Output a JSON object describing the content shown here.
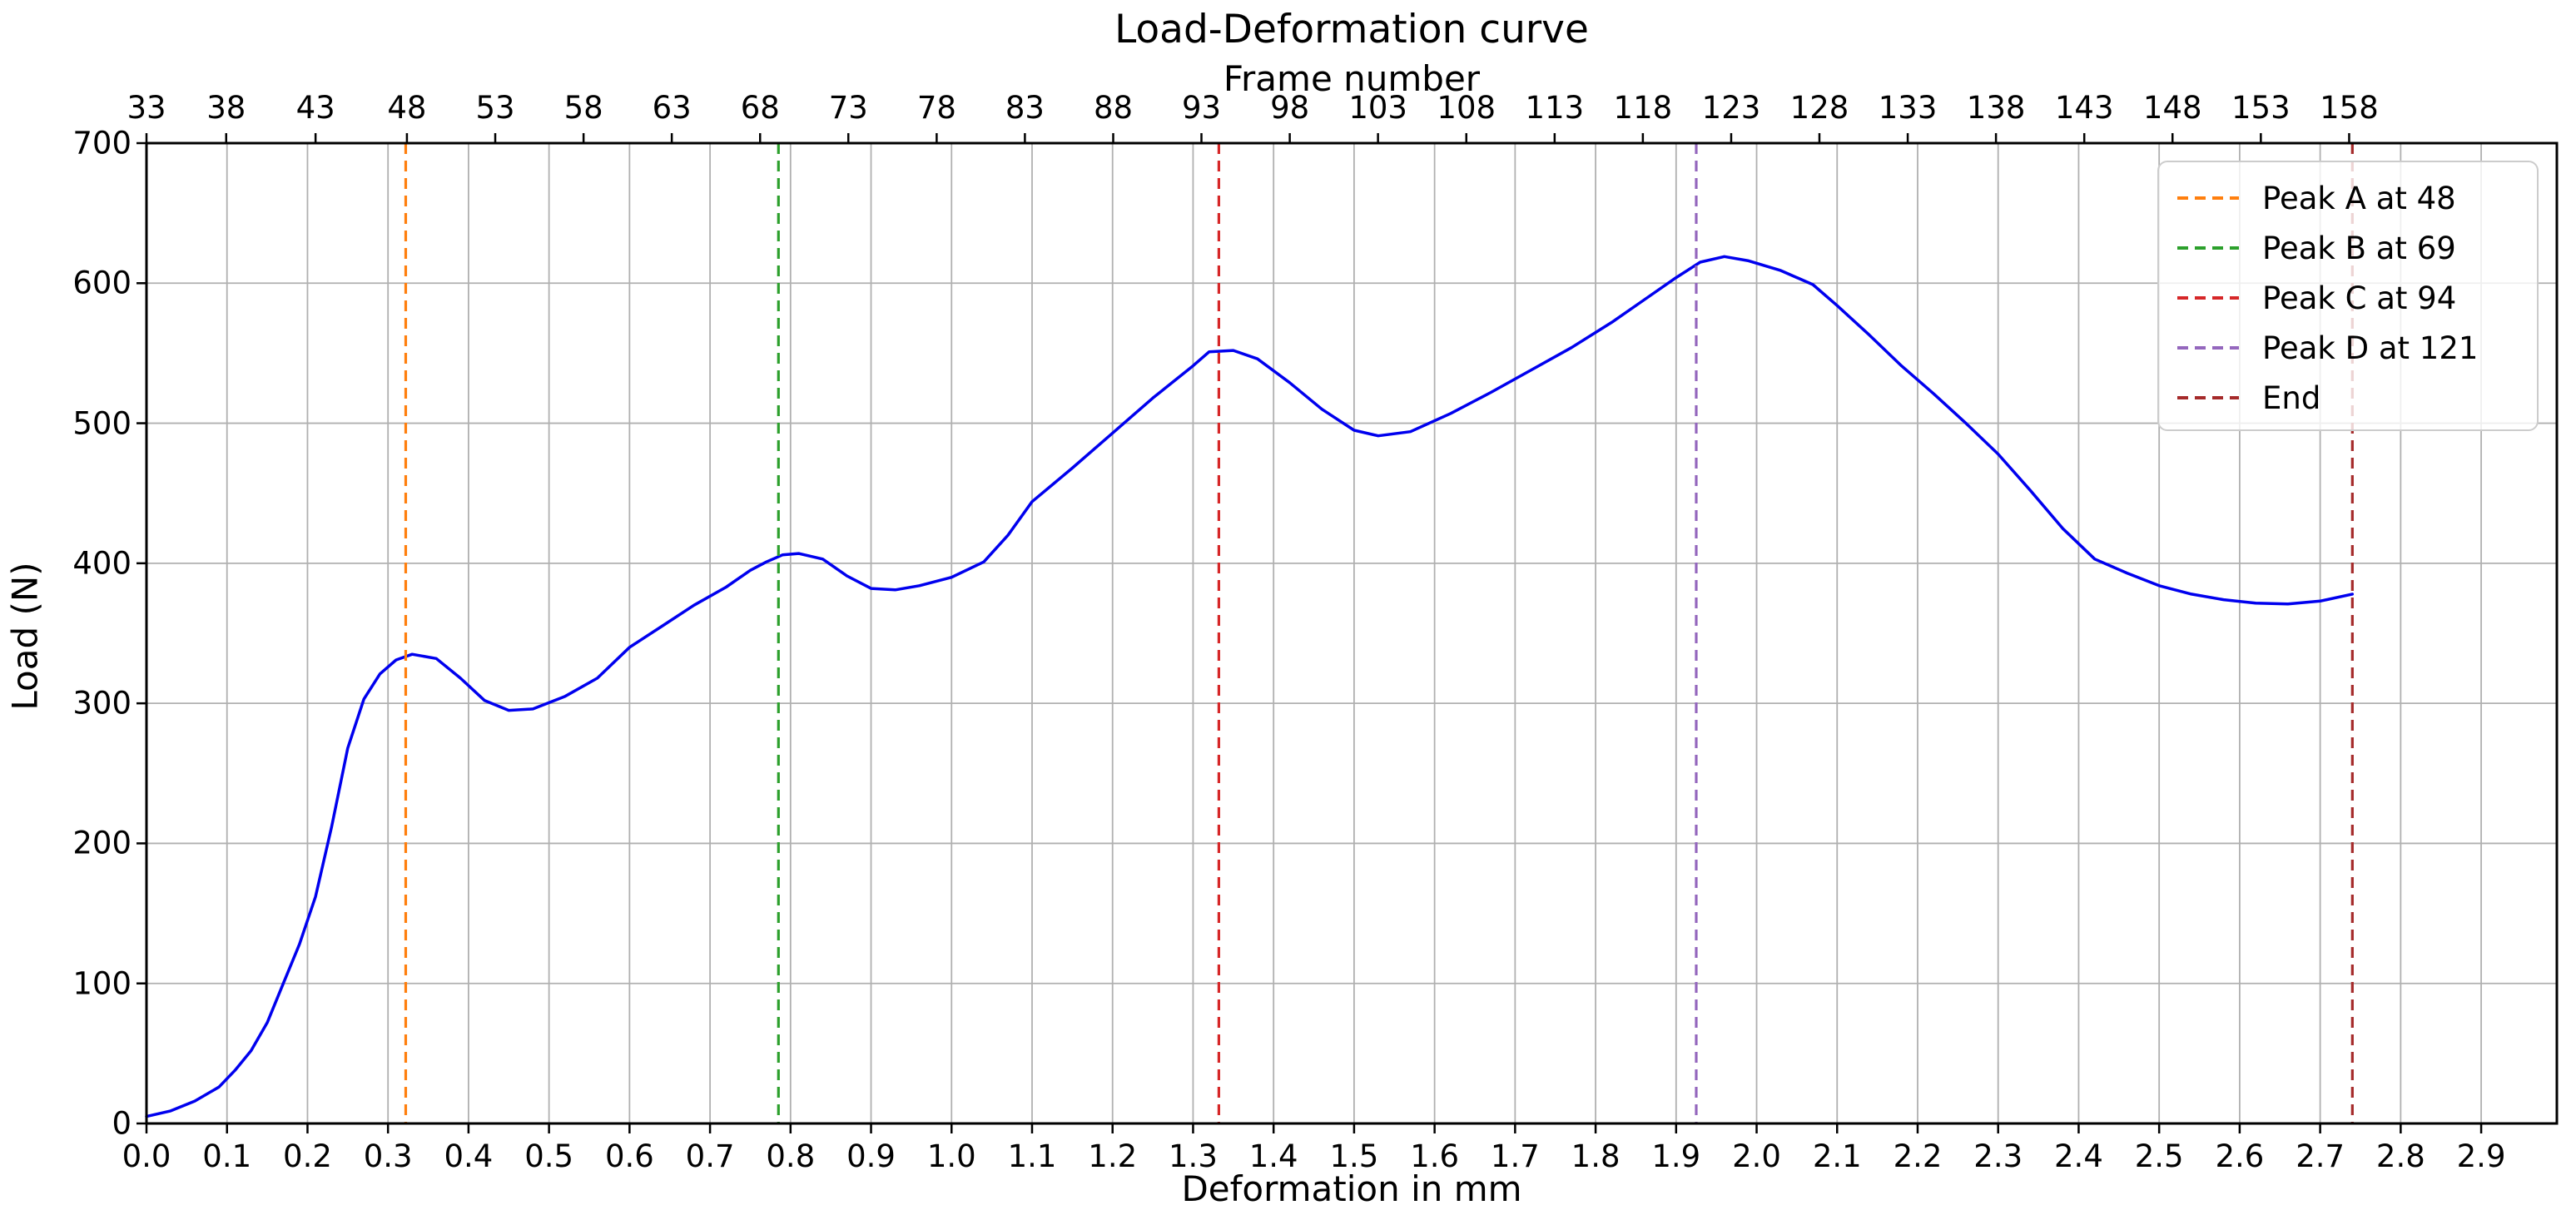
{
  "figure_title": "Load-Deformation curve",
  "chart_data": {
    "type": "line",
    "title": "Load-Deformation curve",
    "xlabel": "Deformation in mm",
    "ylabel": "Load (N)",
    "secondary_xlabel": "Frame number",
    "xlim": [
      0,
      2.994
    ],
    "ylim": [
      0,
      700
    ],
    "grid": true,
    "x_ticks": [
      "0.0",
      "0.1",
      "0.2",
      "0.3",
      "0.4",
      "0.5",
      "0.6",
      "0.7",
      "0.8",
      "0.9",
      "1.0",
      "1.1",
      "1.2",
      "1.3",
      "1.4",
      "1.5",
      "1.6",
      "1.7",
      "1.8",
      "1.9",
      "2.0",
      "2.1",
      "2.2",
      "2.3",
      "2.4",
      "2.5",
      "2.6",
      "2.7",
      "2.8",
      "2.9"
    ],
    "x_tick_values": [
      0.0,
      0.1,
      0.2,
      0.3,
      0.4,
      0.5,
      0.6,
      0.7,
      0.8,
      0.9,
      1.0,
      1.1,
      1.2,
      1.3,
      1.4,
      1.5,
      1.6,
      1.7,
      1.8,
      1.9,
      2.0,
      2.1,
      2.2,
      2.3,
      2.4,
      2.5,
      2.6,
      2.7,
      2.8,
      2.9
    ],
    "y_ticks": [
      0,
      100,
      200,
      300,
      400,
      500,
      600,
      700
    ],
    "frame_axis_ticks": [
      {
        "label": "33",
        "x": 0.0
      },
      {
        "label": "38",
        "x": 0.099
      },
      {
        "label": "43",
        "x": 0.21
      },
      {
        "label": "48",
        "x": 0.3235
      },
      {
        "label": "53",
        "x": 0.4332
      },
      {
        "label": "58",
        "x": 0.5429
      },
      {
        "label": "63",
        "x": 0.6525
      },
      {
        "label": "68",
        "x": 0.7622
      },
      {
        "label": "73",
        "x": 0.8718
      },
      {
        "label": "78",
        "x": 0.9815
      },
      {
        "label": "83",
        "x": 1.0911
      },
      {
        "label": "88",
        "x": 1.2008
      },
      {
        "label": "93",
        "x": 1.3104
      },
      {
        "label": "98",
        "x": 1.4201
      },
      {
        "label": "103",
        "x": 1.5297
      },
      {
        "label": "108",
        "x": 1.6394
      },
      {
        "label": "113",
        "x": 1.7491
      },
      {
        "label": "118",
        "x": 1.8587
      },
      {
        "label": "123",
        "x": 1.9684
      },
      {
        "label": "128",
        "x": 2.078
      },
      {
        "label": "133",
        "x": 2.1877
      },
      {
        "label": "138",
        "x": 2.2973
      },
      {
        "label": "143",
        "x": 2.407
      },
      {
        "label": "148",
        "x": 2.5166
      },
      {
        "label": "153",
        "x": 2.6263
      },
      {
        "label": "158",
        "x": 2.736
      }
    ],
    "series": [
      {
        "name": "load-deformation-curve",
        "color": "#0000ee",
        "x": [
          0.0,
          0.03,
          0.06,
          0.09,
          0.11,
          0.13,
          0.15,
          0.17,
          0.19,
          0.21,
          0.23,
          0.25,
          0.27,
          0.29,
          0.31,
          0.33,
          0.36,
          0.39,
          0.42,
          0.45,
          0.48,
          0.52,
          0.56,
          0.6,
          0.64,
          0.68,
          0.72,
          0.75,
          0.77,
          0.79,
          0.81,
          0.84,
          0.87,
          0.9,
          0.93,
          0.96,
          1.0,
          1.04,
          1.07,
          1.1,
          1.15,
          1.2,
          1.25,
          1.3,
          1.32,
          1.35,
          1.38,
          1.42,
          1.46,
          1.5,
          1.53,
          1.57,
          1.62,
          1.67,
          1.72,
          1.77,
          1.82,
          1.86,
          1.9,
          1.93,
          1.96,
          1.99,
          2.03,
          2.07,
          2.1,
          2.14,
          2.18,
          2.22,
          2.26,
          2.3,
          2.34,
          2.38,
          2.42,
          2.46,
          2.5,
          2.54,
          2.58,
          2.62,
          2.66,
          2.7,
          2.74
        ],
        "y": [
          5,
          9,
          16,
          26,
          38,
          52,
          72,
          100,
          128,
          162,
          212,
          268,
          303,
          321,
          331,
          335,
          332,
          318,
          302,
          295,
          296,
          305,
          318,
          340,
          355,
          370,
          383,
          395,
          401,
          406,
          407,
          403,
          391,
          382,
          381,
          384,
          390,
          401,
          420,
          444,
          468,
          493,
          518,
          541,
          551,
          552,
          546,
          529,
          510,
          495,
          491,
          494,
          507,
          522,
          538,
          554,
          572,
          588,
          604,
          615,
          619,
          616,
          609,
          599,
          584,
          563,
          541,
          521,
          500,
          478,
          452,
          425,
          403,
          393,
          384,
          378,
          374,
          371.5,
          371,
          373,
          378
        ]
      }
    ],
    "vlines": [
      {
        "label": "Peak A at 48",
        "x": 0.322,
        "color": "#ff7f0e"
      },
      {
        "label": "Peak B at 69",
        "x": 0.785,
        "color": "#2ca02c"
      },
      {
        "label": "Peak C at 94",
        "x": 1.332,
        "color": "#d62728"
      },
      {
        "label": "Peak D at 121",
        "x": 1.925,
        "color": "#9467bd"
      },
      {
        "label": "End",
        "x": 2.74,
        "color": "#a52a2a"
      }
    ],
    "legend": {
      "position": "upper right",
      "entries": [
        {
          "label": "Peak A at 48",
          "color": "#ff7f0e"
        },
        {
          "label": "Peak B at 69",
          "color": "#2ca02c"
        },
        {
          "label": "Peak C at 94",
          "color": "#d62728"
        },
        {
          "label": "Peak D at 121",
          "color": "#9467bd"
        },
        {
          "label": "End",
          "color": "#a52a2a"
        }
      ]
    },
    "colors": {
      "grid": "#b0b0b0",
      "spine": "#000000",
      "tick": "#000000",
      "text": "#000000"
    }
  }
}
